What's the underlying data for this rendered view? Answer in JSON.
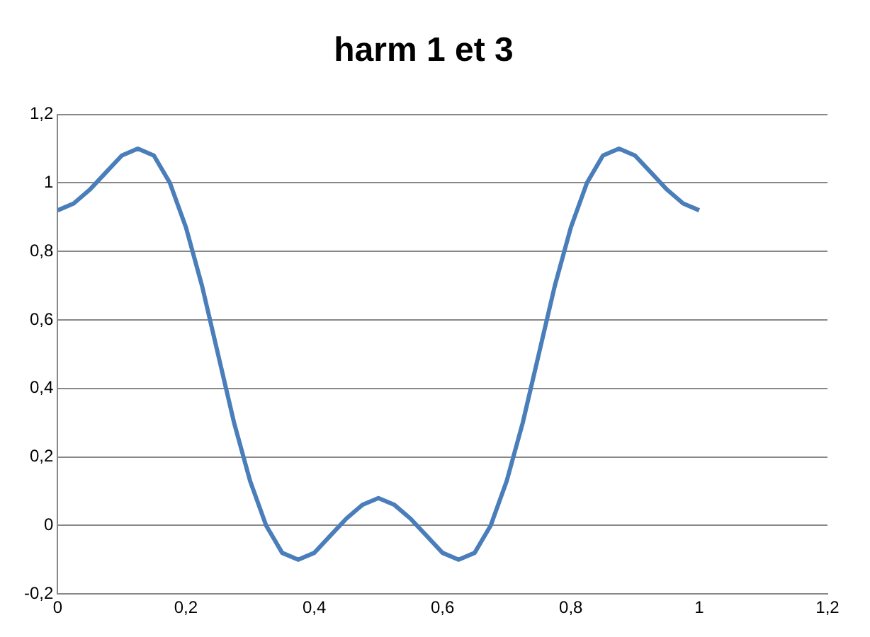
{
  "chart_data": {
    "type": "line",
    "title": "harm 1 et 3",
    "x": [
      0,
      0.025,
      0.05,
      0.075,
      0.1,
      0.125,
      0.15,
      0.175,
      0.2,
      0.225,
      0.25,
      0.275,
      0.3,
      0.325,
      0.35,
      0.375,
      0.4,
      0.425,
      0.45,
      0.475,
      0.5,
      0.525,
      0.55,
      0.575,
      0.6,
      0.625,
      0.65,
      0.675,
      0.7,
      0.725,
      0.75,
      0.775,
      0.8,
      0.825,
      0.85,
      0.875,
      0.9,
      0.925,
      0.95,
      0.975,
      1
    ],
    "series": [
      {
        "color": "#4a7ebb",
        "values": [
          0.92,
          0.94,
          0.98,
          1.03,
          1.08,
          1.1,
          1.08,
          1.0,
          0.87,
          0.7,
          0.5,
          0.3,
          0.13,
          0.0,
          -0.08,
          -0.1,
          -0.08,
          -0.03,
          0.02,
          0.06,
          0.08,
          0.06,
          0.02,
          -0.03,
          -0.08,
          -0.1,
          -0.08,
          0.0,
          0.13,
          0.3,
          0.5,
          0.7,
          0.87,
          1.0,
          1.08,
          1.1,
          1.08,
          1.03,
          0.98,
          0.94,
          0.92
        ]
      }
    ],
    "xlim": [
      0,
      1.2
    ],
    "xticks": [
      0,
      {
        "value": 0.2,
        "label": "0,2"
      },
      {
        "value": 0.4,
        "label": "0,4"
      },
      {
        "value": 0.6,
        "label": "0,6"
      },
      {
        "value": 0.8,
        "label": "0,8"
      },
      1,
      {
        "value": 1.2,
        "label": "1,2"
      }
    ],
    "ylim": [
      -0.2,
      1.2
    ],
    "yticks": [
      {
        "value": -0.2,
        "label": "-0,2"
      },
      0,
      {
        "value": 0.2,
        "label": "0,2"
      },
      {
        "value": 0.4,
        "label": "0,4"
      },
      {
        "value": 0.6,
        "label": "0,6"
      },
      {
        "value": 0.8,
        "label": "0,8"
      },
      1,
      {
        "value": 1.2,
        "label": "1,2"
      }
    ],
    "grid": "y",
    "legend": false,
    "marker": "none",
    "line_style": "solid"
  }
}
